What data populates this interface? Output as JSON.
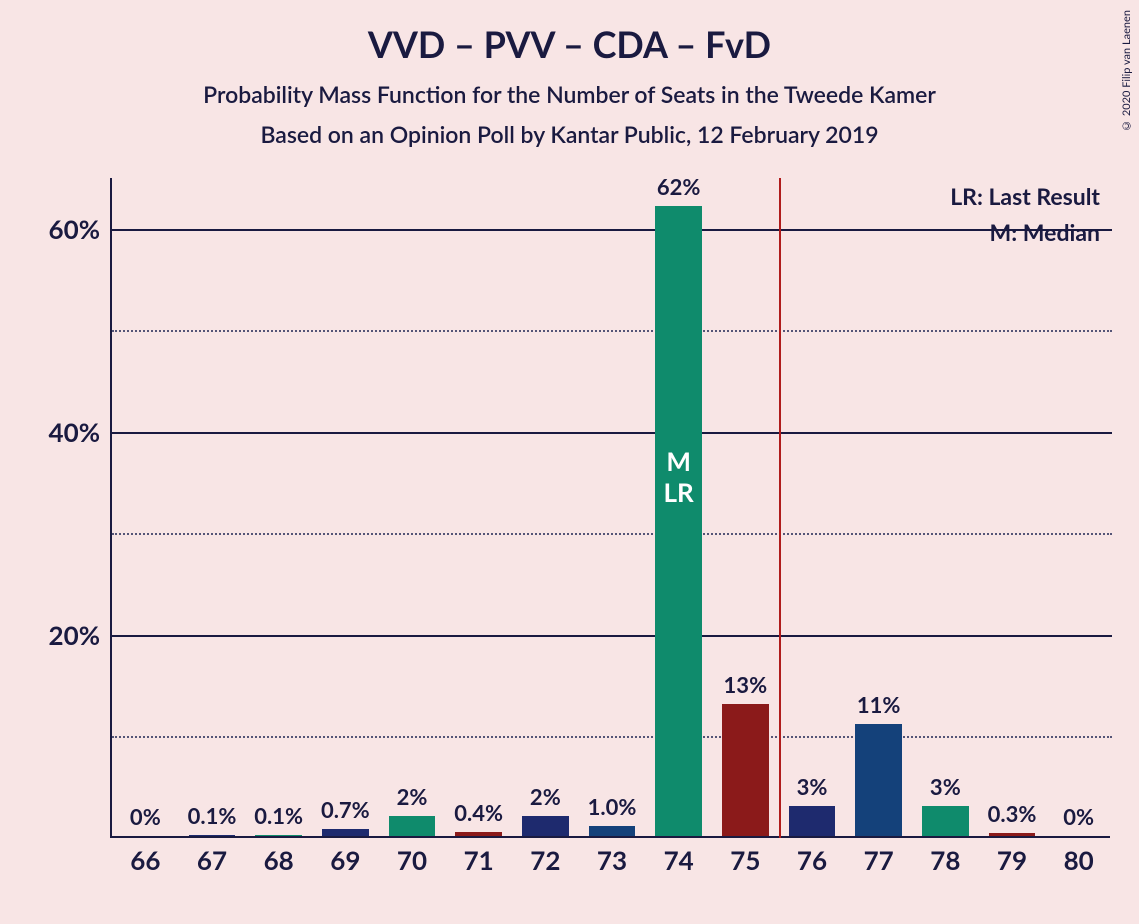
{
  "copyright": "© 2020 Filip van Laenen",
  "title": "VVD – PVV – CDA – FvD",
  "subtitle1": "Probability Mass Function for the Number of Seats in the Tweede Kamer",
  "subtitle2": "Based on an Opinion Poll by Kantar Public, 12 February 2019",
  "legend": {
    "lr": "LR: Last Result",
    "m": "M: Median"
  },
  "chart": {
    "type": "bar",
    "background_color": "#f8e5e5",
    "axis_color": "#1a1a40",
    "grid_minor_color": "#555577",
    "majority_line_color": "#b01c1c",
    "majority_line_x": 75.5,
    "ylim_max": 65,
    "ytick_major": [
      20,
      40,
      60
    ],
    "ytick_minor": [
      10,
      30,
      50
    ],
    "bar_width": 0.7,
    "colors": {
      "teal": "#0f8b6c",
      "navy": "#1e2a6e",
      "blue": "#14417a",
      "maroon": "#8b1a1a"
    },
    "categories": [
      66,
      67,
      68,
      69,
      70,
      71,
      72,
      73,
      74,
      75,
      76,
      77,
      78,
      79,
      80
    ],
    "values": [
      0,
      0.1,
      0.1,
      0.7,
      2,
      0.4,
      2,
      1.0,
      62,
      13,
      3,
      11,
      3,
      0.3,
      0
    ],
    "labels": [
      "0%",
      "0.1%",
      "0.1%",
      "0.7%",
      "2%",
      "0.4%",
      "2%",
      "1.0%",
      "62%",
      "13%",
      "3%",
      "11%",
      "3%",
      "0.3%",
      "0%"
    ],
    "bar_colors": [
      "teal",
      "navy",
      "teal",
      "navy",
      "teal",
      "maroon",
      "navy",
      "blue",
      "teal",
      "maroon",
      "navy",
      "blue",
      "teal",
      "maroon",
      "teal"
    ],
    "annotations": {
      "median_lr_index": 8,
      "median_text": "M",
      "lr_text": "LR"
    },
    "title_fontsize": 36,
    "subtitle_fontsize": 23,
    "tick_fontsize": 26,
    "barlabel_fontsize": 22
  }
}
